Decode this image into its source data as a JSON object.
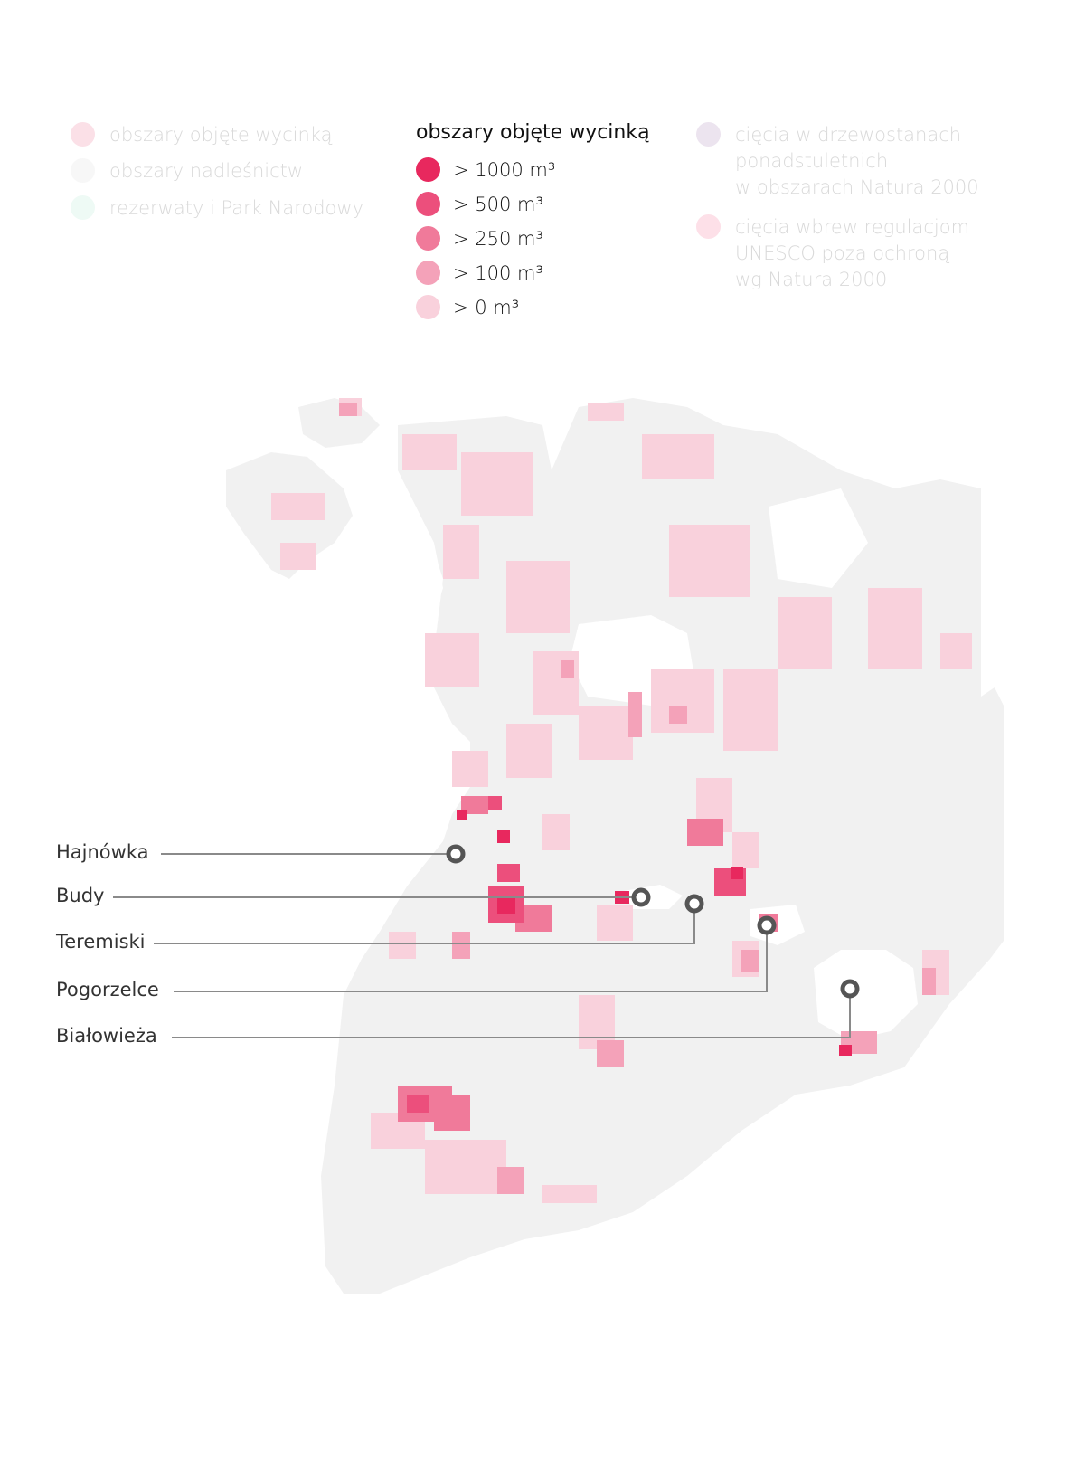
{
  "legend_left": {
    "items": [
      {
        "label": "obszary objęte wycinką",
        "color": "#fbe0e7"
      },
      {
        "label": "obszary nadleśnictw",
        "color": "#f7f7f7"
      },
      {
        "label": "rezerwaty i Park Narodowy",
        "color": "#eefaf5"
      }
    ]
  },
  "legend_center": {
    "title": "obszary objęte wycinką",
    "items": [
      {
        "label": "> 1000 m³",
        "color": "#e8285e"
      },
      {
        "label": "> 500 m³",
        "color": "#ec4f7c"
      },
      {
        "label": "> 250 m³",
        "color": "#f07a9a"
      },
      {
        "label": "> 100 m³",
        "color": "#f4a2b9"
      },
      {
        "label": "> 0 m³",
        "color": "#f9d1dc"
      }
    ]
  },
  "legend_right": {
    "items": [
      {
        "lines": [
          "cięcia w drzewostanach",
          "ponadstuletnich",
          "w obszarach Natura 2000"
        ],
        "color": "#ece4ef"
      },
      {
        "lines": [
          "cięcia wbrew regulacjom",
          "UNESCO poza ochroną",
          "wg Natura 2000"
        ],
        "color": "#fde0e8"
      }
    ]
  },
  "towns": [
    {
      "name": "Hajnówka"
    },
    {
      "name": "Budy"
    },
    {
      "name": "Teremiski"
    },
    {
      "name": "Pogorzelce"
    },
    {
      "name": "Białowieża"
    }
  ],
  "colors": {
    "land": "#f1f1f1",
    "marker": "#555555",
    "leader": "#8a8a8a"
  }
}
